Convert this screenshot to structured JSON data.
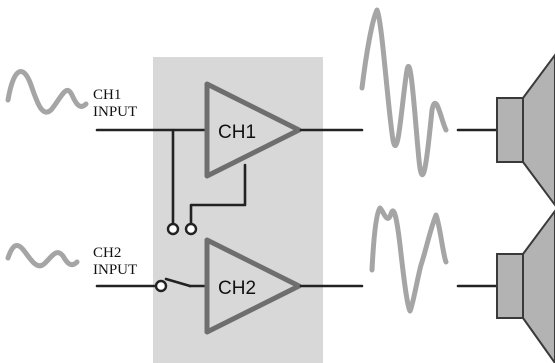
{
  "inputs": {
    "ch1": {
      "line1": "CH1",
      "line2": "INPUT"
    },
    "ch2": {
      "line1": "CH2",
      "line2": "INPUT"
    }
  },
  "amplifiers": {
    "ch1": "CH1",
    "ch2": "CH2"
  },
  "colors": {
    "panel": "#d8d8d8",
    "wave": "#a5a5a5",
    "amplifier": "#6e6e6e",
    "wire": "#222222",
    "speaker": "#b3b3b3"
  }
}
